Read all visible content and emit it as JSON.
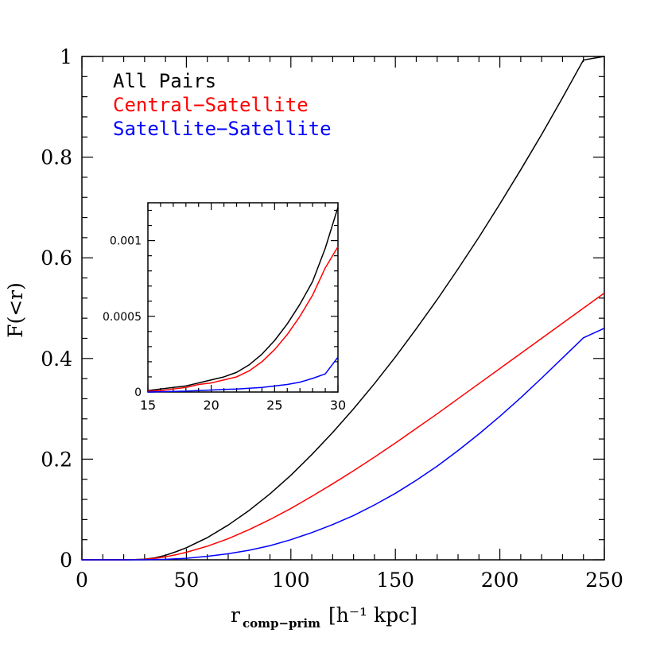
{
  "chart_data": [
    {
      "type": "line",
      "xlabel": "r",
      "xlabel_sub": "comp−prim",
      "xlabel_units": "[h⁻¹ kpc]",
      "ylabel": "F(<r)",
      "xlim": [
        0,
        250
      ],
      "ylim": [
        0,
        1
      ],
      "x_ticks": [
        "0",
        "50",
        "100",
        "150",
        "200",
        "250"
      ],
      "y_ticks": [
        "0",
        "0.2",
        "0.4",
        "0.6",
        "0.8",
        "1"
      ],
      "legend_position": "top-left",
      "grid": false,
      "series": [
        {
          "name": "All Pairs",
          "color": "#000000",
          "x": [
            0,
            10,
            20,
            25,
            30,
            35,
            40,
            45,
            50,
            60,
            70,
            80,
            90,
            100,
            110,
            120,
            130,
            140,
            150,
            160,
            170,
            180,
            190,
            200,
            210,
            220,
            230,
            240,
            250
          ],
          "y": [
            0,
            0,
            0,
            0.0003,
            0.0012,
            0.004,
            0.009,
            0.016,
            0.024,
            0.044,
            0.069,
            0.098,
            0.131,
            0.168,
            0.209,
            0.253,
            0.3,
            0.35,
            0.403,
            0.459,
            0.517,
            0.578,
            0.641,
            0.707,
            0.775,
            0.845,
            0.918,
            0.993,
            1.0
          ]
        },
        {
          "name": "Central−Satellite",
          "color": "#ff0000",
          "x": [
            0,
            10,
            20,
            25,
            30,
            35,
            40,
            45,
            50,
            60,
            70,
            80,
            90,
            100,
            110,
            120,
            130,
            140,
            150,
            160,
            170,
            180,
            190,
            200,
            210,
            220,
            230,
            240,
            250
          ],
          "y": [
            0,
            0,
            0,
            0.0003,
            0.001,
            0.003,
            0.006,
            0.01,
            0.015,
            0.027,
            0.042,
            0.06,
            0.08,
            0.102,
            0.126,
            0.151,
            0.177,
            0.204,
            0.232,
            0.261,
            0.29,
            0.32,
            0.35,
            0.38,
            0.41,
            0.44,
            0.47,
            0.5,
            0.53
          ]
        },
        {
          "name": "Satellite−Satellite",
          "color": "#0000ff",
          "x": [
            0,
            10,
            20,
            30,
            40,
            50,
            60,
            70,
            80,
            90,
            100,
            110,
            120,
            130,
            140,
            150,
            160,
            170,
            180,
            190,
            200,
            210,
            220,
            230,
            240,
            250
          ],
          "y": [
            0,
            0,
            0,
            0.0002,
            0.001,
            0.003,
            0.007,
            0.012,
            0.019,
            0.028,
            0.04,
            0.054,
            0.07,
            0.088,
            0.109,
            0.132,
            0.158,
            0.186,
            0.217,
            0.25,
            0.285,
            0.322,
            0.361,
            0.401,
            0.441,
            0.46
          ]
        }
      ]
    },
    {
      "type": "line",
      "xlim": [
        15,
        30
      ],
      "ylim": [
        0,
        0.00125
      ],
      "x_ticks": [
        "15",
        "20",
        "25",
        "30"
      ],
      "y_ticks": [
        "0",
        "0.0005",
        "0.001"
      ],
      "grid": false,
      "series": [
        {
          "name": "All Pairs",
          "color": "#000000",
          "x": [
            15,
            16,
            17,
            18,
            19,
            20,
            21,
            22,
            23,
            24,
            25,
            26,
            27,
            28,
            29,
            30
          ],
          "y": [
            1e-05,
            2e-05,
            3e-05,
            4e-05,
            6e-05,
            8e-05,
            0.0001,
            0.00013,
            0.00018,
            0.00025,
            0.00034,
            0.00045,
            0.00058,
            0.00073,
            0.00095,
            0.00122
          ]
        },
        {
          "name": "Central−Satellite",
          "color": "#ff0000",
          "x": [
            15,
            16,
            17,
            18,
            19,
            20,
            21,
            22,
            23,
            24,
            25,
            26,
            27,
            28,
            29,
            30
          ],
          "y": [
            5e-06,
            1e-05,
            2e-05,
            3e-05,
            5e-05,
            6e-05,
            8e-05,
            0.0001,
            0.00014,
            0.0002,
            0.00028,
            0.00038,
            0.0005,
            0.00064,
            0.00082,
            0.00096
          ]
        },
        {
          "name": "Satellite−Satellite",
          "color": "#0000ff",
          "x": [
            15,
            16,
            17,
            18,
            19,
            20,
            21,
            22,
            23,
            24,
            25,
            26,
            27,
            28,
            29,
            30
          ],
          "y": [
            0,
            2e-06,
            4e-06,
            6e-06,
            1e-05,
            1.3e-05,
            1.7e-05,
            2e-05,
            2.5e-05,
            3e-05,
            4e-05,
            5e-05,
            6.5e-05,
            9e-05,
            0.00012,
            0.00023
          ]
        }
      ]
    }
  ]
}
